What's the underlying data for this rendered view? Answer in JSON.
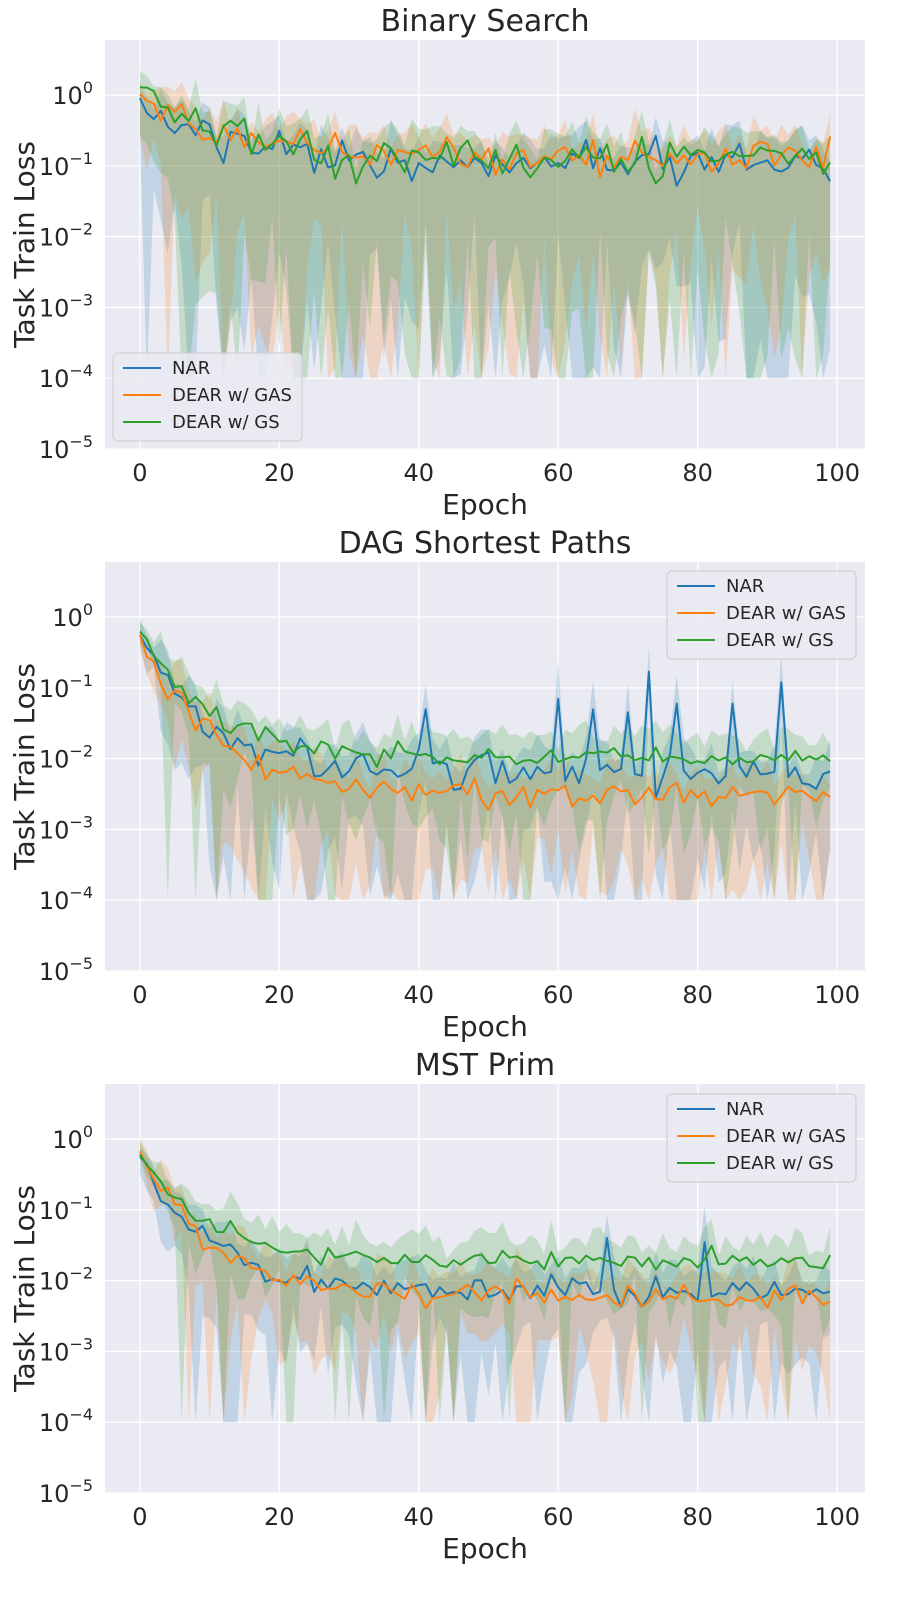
{
  "figure": {
    "xlabel": "Epoch",
    "ylabel": "Task Train Loss"
  },
  "legend_entries": [
    "NAR",
    "DEAR w/ GAS",
    "DEAR w/ GS"
  ],
  "colors": {
    "NAR": "#1f77b4",
    "DEAR w/ GAS": "#ff7f0e",
    "DEAR w/ GS": "#2ca02c",
    "panel_bg": "#eaeaf2",
    "grid": "#ffffff"
  },
  "chart_data": [
    {
      "type": "line",
      "title": "Binary Search",
      "xlabel": "Epoch",
      "ylabel": "Task Train Loss",
      "yscale": "log",
      "xlim": [
        -5,
        104
      ],
      "ylim": [
        1e-05,
        6
      ],
      "xticks": [
        0,
        20,
        40,
        60,
        80,
        100
      ],
      "ytick_exponents": [
        0,
        -1,
        -2,
        -3,
        -4,
        -5
      ],
      "legend_loc": "lower-left",
      "band_floor": 0.0001,
      "series": [
        {
          "name": "NAR",
          "start": 0.8,
          "end": 0.1,
          "curve": 0.12,
          "noise": 0.45,
          "band_lo": 2.5,
          "spikes": []
        },
        {
          "name": "DEAR w/ GAS",
          "start": 1.0,
          "end": 0.13,
          "curve": 0.12,
          "noise": 0.35,
          "band_lo": 2.5,
          "spikes": []
        },
        {
          "name": "DEAR w/ GS",
          "start": 1.4,
          "end": 0.12,
          "curve": 0.12,
          "noise": 0.4,
          "band_lo": 2.5,
          "spikes": []
        }
      ]
    },
    {
      "type": "line",
      "title": "DAG Shortest Paths",
      "xlabel": "Epoch",
      "ylabel": "Task Train Loss",
      "yscale": "log",
      "xlim": [
        -5,
        104
      ],
      "ylim": [
        1e-05,
        6
      ],
      "xticks": [
        0,
        20,
        40,
        60,
        80,
        100
      ],
      "ytick_exponents": [
        0,
        -1,
        -2,
        -3,
        -4,
        -5
      ],
      "legend_loc": "top-right",
      "band_floor": 0.0001,
      "series": [
        {
          "name": "NAR",
          "start": 0.55,
          "end": 0.006,
          "curve": 0.1,
          "noise": 0.35,
          "band_lo": 1.4,
          "spikes": [
            [
              41,
              0.05
            ],
            [
              60,
              0.07
            ],
            [
              65,
              0.05
            ],
            [
              70,
              0.045
            ],
            [
              73,
              0.17
            ],
            [
              77,
              0.06
            ],
            [
              85,
              0.06
            ],
            [
              92,
              0.12
            ]
          ]
        },
        {
          "name": "DEAR w/ GAS",
          "start": 0.6,
          "end": 0.003,
          "curve": 0.1,
          "noise": 0.3,
          "band_lo": 1.3,
          "spikes": []
        },
        {
          "name": "DEAR w/ GS",
          "start": 0.65,
          "end": 0.01,
          "curve": 0.1,
          "noise": 0.2,
          "band_lo": 1.0,
          "spikes": []
        }
      ]
    },
    {
      "type": "line",
      "title": "MST Prim",
      "xlabel": "Epoch",
      "ylabel": "Task Train Loss",
      "yscale": "log",
      "xlim": [
        -5,
        104
      ],
      "ylim": [
        1e-05,
        6
      ],
      "xticks": [
        0,
        20,
        40,
        60,
        80,
        100
      ],
      "ytick_exponents": [
        0,
        -1,
        -2,
        -3,
        -4,
        -5
      ],
      "legend_loc": "top-right",
      "band_floor": 0.0001,
      "series": [
        {
          "name": "NAR",
          "start": 0.6,
          "end": 0.007,
          "curve": 0.1,
          "noise": 0.25,
          "band_lo": 1.0,
          "spikes": [
            [
              67,
              0.04
            ],
            [
              81,
              0.035
            ]
          ]
        },
        {
          "name": "DEAR w/ GAS",
          "start": 0.7,
          "end": 0.006,
          "curve": 0.1,
          "noise": 0.25,
          "band_lo": 1.0,
          "spikes": []
        },
        {
          "name": "DEAR w/ GS",
          "start": 0.6,
          "end": 0.019,
          "curve": 0.1,
          "noise": 0.18,
          "band_lo": 0.7,
          "spikes": []
        }
      ]
    }
  ]
}
